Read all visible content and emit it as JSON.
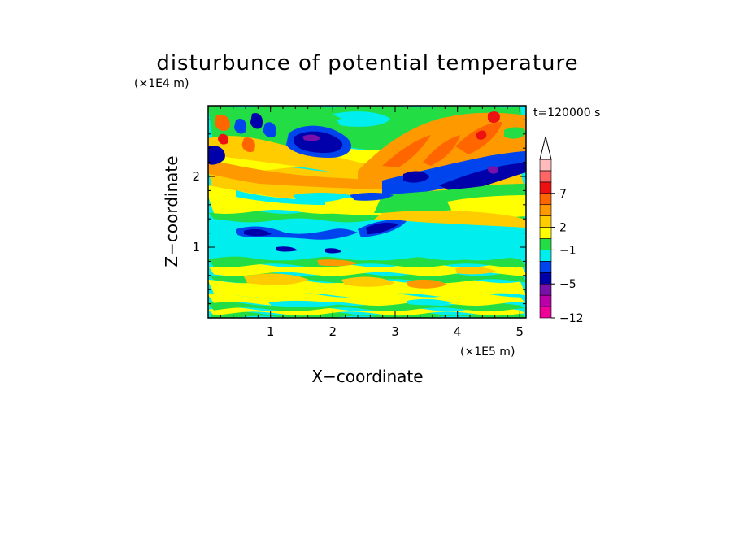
{
  "chart_data": {
    "type": "heatmap",
    "title": "disturbunce of potential temperature",
    "time_label": "t=120000 s",
    "xlabel": "X−coordinate",
    "ylabel": "Z−coordinate",
    "x_unit": "(×1E5 m)",
    "y_unit": "(×1E4 m)",
    "xlim": [
      0,
      5.1
    ],
    "ylim": [
      0,
      3.0
    ],
    "x_ticks": [
      "1",
      "2",
      "3",
      "4",
      "5"
    ],
    "y_ticks": [
      "1",
      "2"
    ],
    "colorbar": {
      "colors": [
        "#ee0099",
        "#bb00aa",
        "#7711aa",
        "#0000aa",
        "#0044ee",
        "#00eeee",
        "#22dd44",
        "#ffff00",
        "#ffcc00",
        "#ff9900",
        "#ff6600",
        "#ee1111",
        "#ff6666",
        "#ffbbbb"
      ],
      "tick_labels": [
        "7",
        "2",
        "−1",
        "−5",
        "−12"
      ],
      "extend_top": true
    },
    "bands": [
      {
        "z_min": 0.0,
        "z_max": 0.06,
        "level": "green"
      },
      {
        "z_min": 0.06,
        "z_max": 0.12,
        "level": "yellow"
      },
      {
        "z_min": 0.12,
        "z_max": 0.2,
        "level": "green"
      },
      {
        "z_min": 0.2,
        "z_max": 0.32,
        "level": "yellow"
      },
      {
        "z_min": 0.32,
        "z_max": 0.52,
        "level": "yellow"
      },
      {
        "z_min": 0.52,
        "z_max": 0.62,
        "level": "green"
      },
      {
        "z_min": 0.62,
        "z_max": 0.74,
        "level": "yellow"
      },
      {
        "z_min": 0.74,
        "z_max": 0.84,
        "level": "green"
      },
      {
        "z_min": 0.84,
        "z_max": 1.18,
        "level": "cyan"
      },
      {
        "z_min": 1.18,
        "z_max": 1.38,
        "level": "cyan"
      },
      {
        "z_min": 1.38,
        "z_max": 1.5,
        "level": "green"
      },
      {
        "z_min": 1.5,
        "z_max": 1.72,
        "level": "yellow"
      },
      {
        "z_min": 1.72,
        "z_max": 2.1,
        "level": "orange"
      },
      {
        "z_min": 2.1,
        "z_max": 2.4,
        "level": "yellow"
      },
      {
        "z_min": 2.4,
        "z_max": 3.0,
        "level": "green"
      }
    ]
  }
}
